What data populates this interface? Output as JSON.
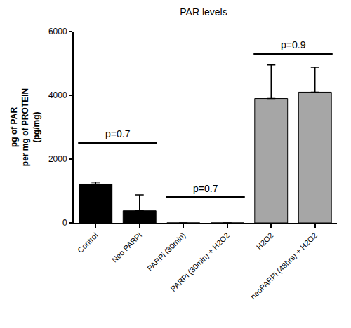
{
  "chart_data": {
    "type": "bar",
    "title": "PAR levels",
    "y_label": "pg of PAR\nper mg of PROTEIN\n(pg/mg)",
    "categories": [
      "Control",
      "Neo PARPi",
      "PARPi (30min)",
      "PARPi (30min) + H2O2",
      "H2O2",
      "neoPARPi (48hrs) + H2O2"
    ],
    "values": [
      1220,
      380,
      0,
      0,
      3900,
      4100
    ],
    "errors": [
      60,
      500,
      0,
      0,
      1050,
      780
    ],
    "colors": [
      "#000000",
      "#000000",
      "#000000",
      "#000000",
      "#a6a6a6",
      "#a6a6a6"
    ],
    "ylim": [
      0,
      6000
    ],
    "yticks": [
      0,
      2000,
      4000,
      6000
    ],
    "grid": false,
    "annotations": [
      {
        "text": "p=0.7",
        "from": "Control",
        "to": "Neo PARPi",
        "y": 2500
      },
      {
        "text": "p=0.7",
        "from": "PARPi (30min)",
        "to": "PARPi (30min) + H2O2",
        "y": 800
      },
      {
        "text": "p=0.9",
        "from": "H2O2",
        "to": "neoPARPi (48hrs) + H2O2",
        "y": 5300
      }
    ]
  }
}
